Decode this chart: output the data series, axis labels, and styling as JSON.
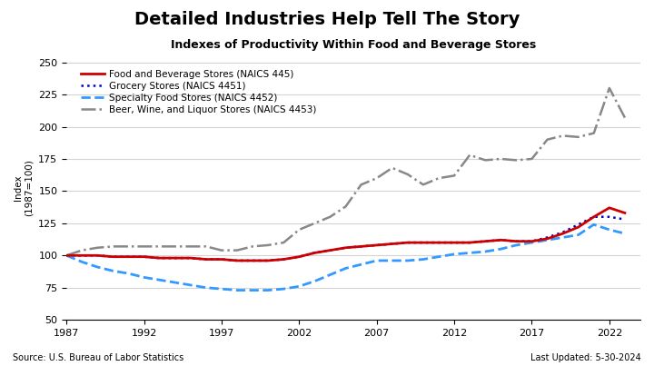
{
  "title": "Detailed Industries Help Tell The Story",
  "subtitle": "Indexes of Productivity Within Food and Beverage Stores",
  "ylabel": "Index\n(1987=100)",
  "source": "Source: U.S. Bureau of Labor Statistics",
  "last_updated": "Last Updated: 5-30-2024",
  "years": [
    1987,
    1988,
    1989,
    1990,
    1991,
    1992,
    1993,
    1994,
    1995,
    1996,
    1997,
    1998,
    1999,
    2000,
    2001,
    2002,
    2003,
    2004,
    2005,
    2006,
    2007,
    2008,
    2009,
    2010,
    2011,
    2012,
    2013,
    2014,
    2015,
    2016,
    2017,
    2018,
    2019,
    2020,
    2021,
    2022,
    2023
  ],
  "food_beverage": [
    100,
    100,
    100,
    99,
    99,
    99,
    98,
    98,
    98,
    97,
    97,
    96,
    96,
    96,
    97,
    99,
    102,
    104,
    106,
    107,
    108,
    109,
    110,
    110,
    110,
    110,
    110,
    111,
    112,
    111,
    111,
    113,
    117,
    122,
    130,
    137,
    133
  ],
  "grocery": [
    100,
    100,
    100,
    99,
    99,
    99,
    98,
    98,
    98,
    97,
    97,
    96,
    96,
    96,
    97,
    99,
    102,
    104,
    106,
    107,
    108,
    109,
    110,
    110,
    110,
    110,
    110,
    111,
    112,
    111,
    111,
    114,
    118,
    124,
    130,
    130,
    128
  ],
  "specialty": [
    100,
    95,
    91,
    88,
    86,
    83,
    81,
    79,
    77,
    75,
    74,
    73,
    73,
    73,
    74,
    76,
    80,
    85,
    90,
    93,
    96,
    96,
    96,
    97,
    99,
    101,
    102,
    103,
    105,
    108,
    110,
    112,
    114,
    116,
    124,
    120,
    117
  ],
  "beer_wine": [
    100,
    104,
    106,
    107,
    107,
    107,
    107,
    107,
    107,
    107,
    104,
    104,
    107,
    108,
    110,
    120,
    125,
    130,
    138,
    155,
    160,
    168,
    163,
    155,
    160,
    162,
    178,
    174,
    175,
    174,
    175,
    190,
    193,
    192,
    195,
    230,
    207
  ],
  "food_bev_color": "#cc0000",
  "grocery_color": "#0000cc",
  "specialty_color": "#3399ff",
  "beer_wine_color": "#888888",
  "ylim": [
    50,
    255
  ],
  "yticks": [
    50,
    75,
    100,
    125,
    150,
    175,
    200,
    225,
    250
  ],
  "xticks": [
    1987,
    1992,
    1997,
    2002,
    2007,
    2012,
    2017,
    2022
  ]
}
